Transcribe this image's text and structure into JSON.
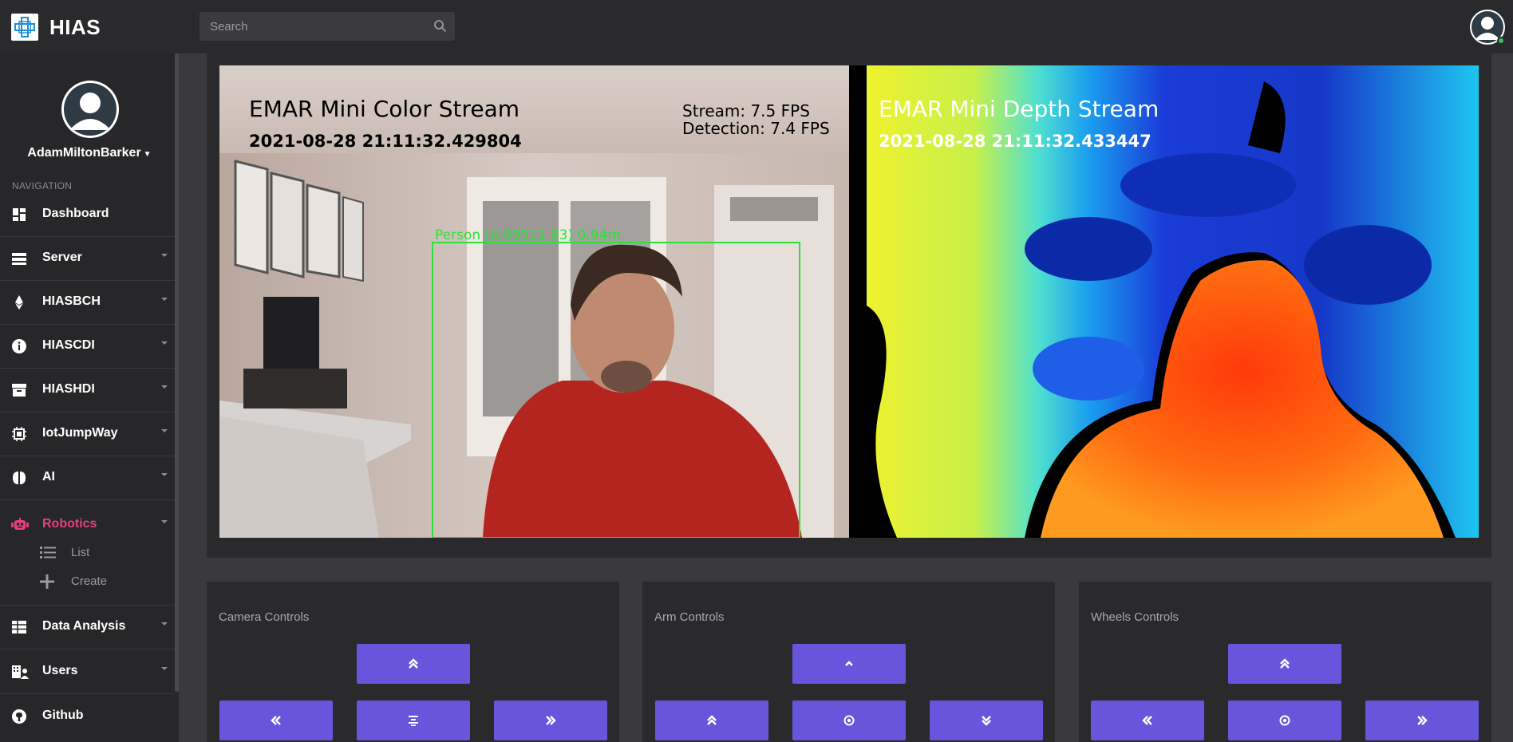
{
  "header": {
    "brand": "HIAS",
    "search_placeholder": "Search"
  },
  "sidebar": {
    "username": "AdamMiltonBarker",
    "nav_heading": "NAVIGATION",
    "items": [
      {
        "label": "Dashboard",
        "icon": "dashboard-icon",
        "has_caret": false
      },
      {
        "label": "Server",
        "icon": "server-icon",
        "has_caret": true
      },
      {
        "label": "HIASBCH",
        "icon": "ethereum-icon",
        "has_caret": true
      },
      {
        "label": "HIASCDI",
        "icon": "info-icon",
        "has_caret": true
      },
      {
        "label": "HIASHDI",
        "icon": "archive-icon",
        "has_caret": true
      },
      {
        "label": "IotJumpWay",
        "icon": "chip-icon",
        "has_caret": true
      },
      {
        "label": "AI",
        "icon": "brain-icon",
        "has_caret": true
      },
      {
        "label": "Robotics",
        "icon": "robot-icon",
        "has_caret": true,
        "active": true
      },
      {
        "label": "Data Analysis",
        "icon": "table-icon",
        "has_caret": true
      },
      {
        "label": "Users",
        "icon": "users-icon",
        "has_caret": true
      },
      {
        "label": "Github",
        "icon": "github-icon",
        "has_caret": false
      }
    ],
    "robotics_sub": [
      {
        "label": "List",
        "icon": "list-icon"
      },
      {
        "label": "Create",
        "icon": "plus-icon"
      }
    ]
  },
  "streams": {
    "color": {
      "title": "EMAR Mini Color Stream",
      "timestamp": "2021-08-28 21:11:32.429804",
      "fps_stream": "Stream: 7.5 FPS",
      "fps_detection": "Detection: 7.4 FPS",
      "detection_label": "Person (0.99511 93) 0.94m"
    },
    "depth": {
      "title": "EMAR Mini Depth Stream",
      "timestamp": "2021-08-28 21:11:32.433447"
    }
  },
  "controls": {
    "camera": {
      "title": "Camera Controls"
    },
    "arm": {
      "title": "Arm Controls"
    },
    "wheels": {
      "title": "Wheels Controls"
    }
  },
  "colors": {
    "accent": "#6756dc",
    "active_nav": "#e8407d",
    "sidebar_bg": "#272729",
    "panel_bg": "#2a2a2c"
  }
}
